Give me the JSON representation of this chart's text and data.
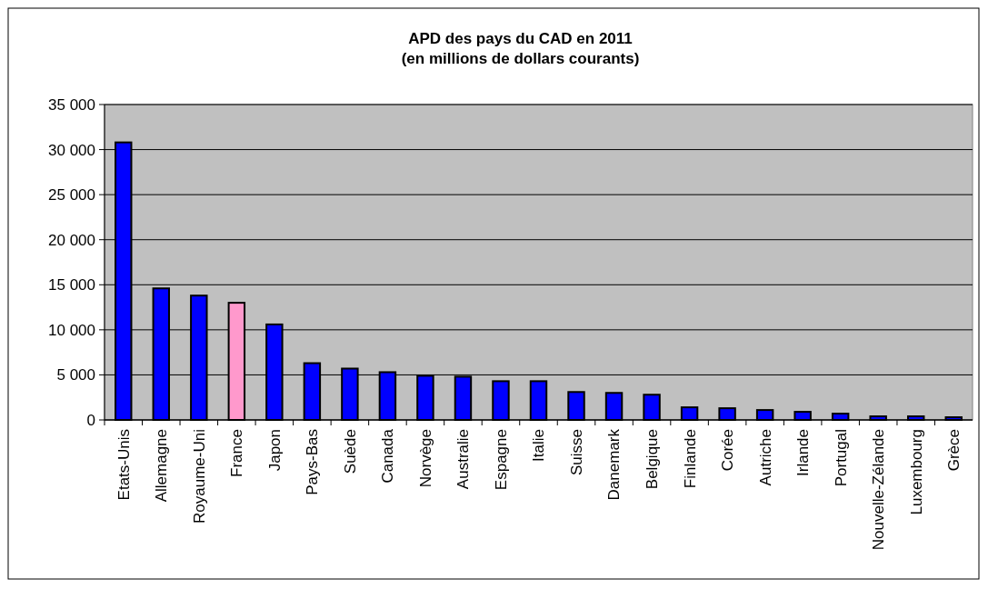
{
  "chart_data": {
    "type": "bar",
    "title": "APD des pays du CAD en 2011\n(en millions de dollars courants)",
    "categories": [
      "Etats-Unis",
      "Allemagne",
      "Royaume-Uni",
      "France",
      "Japon",
      "Pays-Bas",
      "Suède",
      "Canada",
      "Norvège",
      "Australie",
      "Espagne",
      "Italie",
      "Suisse",
      "Danemark",
      "Belgique",
      "Finlande",
      "Corée",
      "Autriche",
      "Irlande",
      "Portugal",
      "Nouvelle-Zélande",
      "Luxembourg",
      "Grèce"
    ],
    "values": [
      30800,
      14600,
      13800,
      13000,
      10600,
      6300,
      5700,
      5300,
      4900,
      4800,
      4300,
      4300,
      3100,
      3000,
      2800,
      1400,
      1300,
      1100,
      900,
      700,
      400,
      400,
      300
    ],
    "colors": [
      "#0000ff",
      "#0000ff",
      "#0000ff",
      "#ff99cc",
      "#0000ff",
      "#0000ff",
      "#0000ff",
      "#0000ff",
      "#0000ff",
      "#0000ff",
      "#0000ff",
      "#0000ff",
      "#0000ff",
      "#0000ff",
      "#0000ff",
      "#0000ff",
      "#0000ff",
      "#0000ff",
      "#0000ff",
      "#0000ff",
      "#0000ff",
      "#0000ff",
      "#0000ff"
    ],
    "ylim": [
      0,
      35000
    ],
    "yticks": [
      {
        "value": 0,
        "label": "0"
      },
      {
        "value": 5000,
        "label": "5 000"
      },
      {
        "value": 10000,
        "label": "10 000"
      },
      {
        "value": 15000,
        "label": "15 000"
      },
      {
        "value": 20000,
        "label": "20 000"
      },
      {
        "value": 25000,
        "label": "25 000"
      },
      {
        "value": 30000,
        "label": "30 000"
      },
      {
        "value": 35000,
        "label": "35 000"
      }
    ],
    "grid": "y"
  }
}
